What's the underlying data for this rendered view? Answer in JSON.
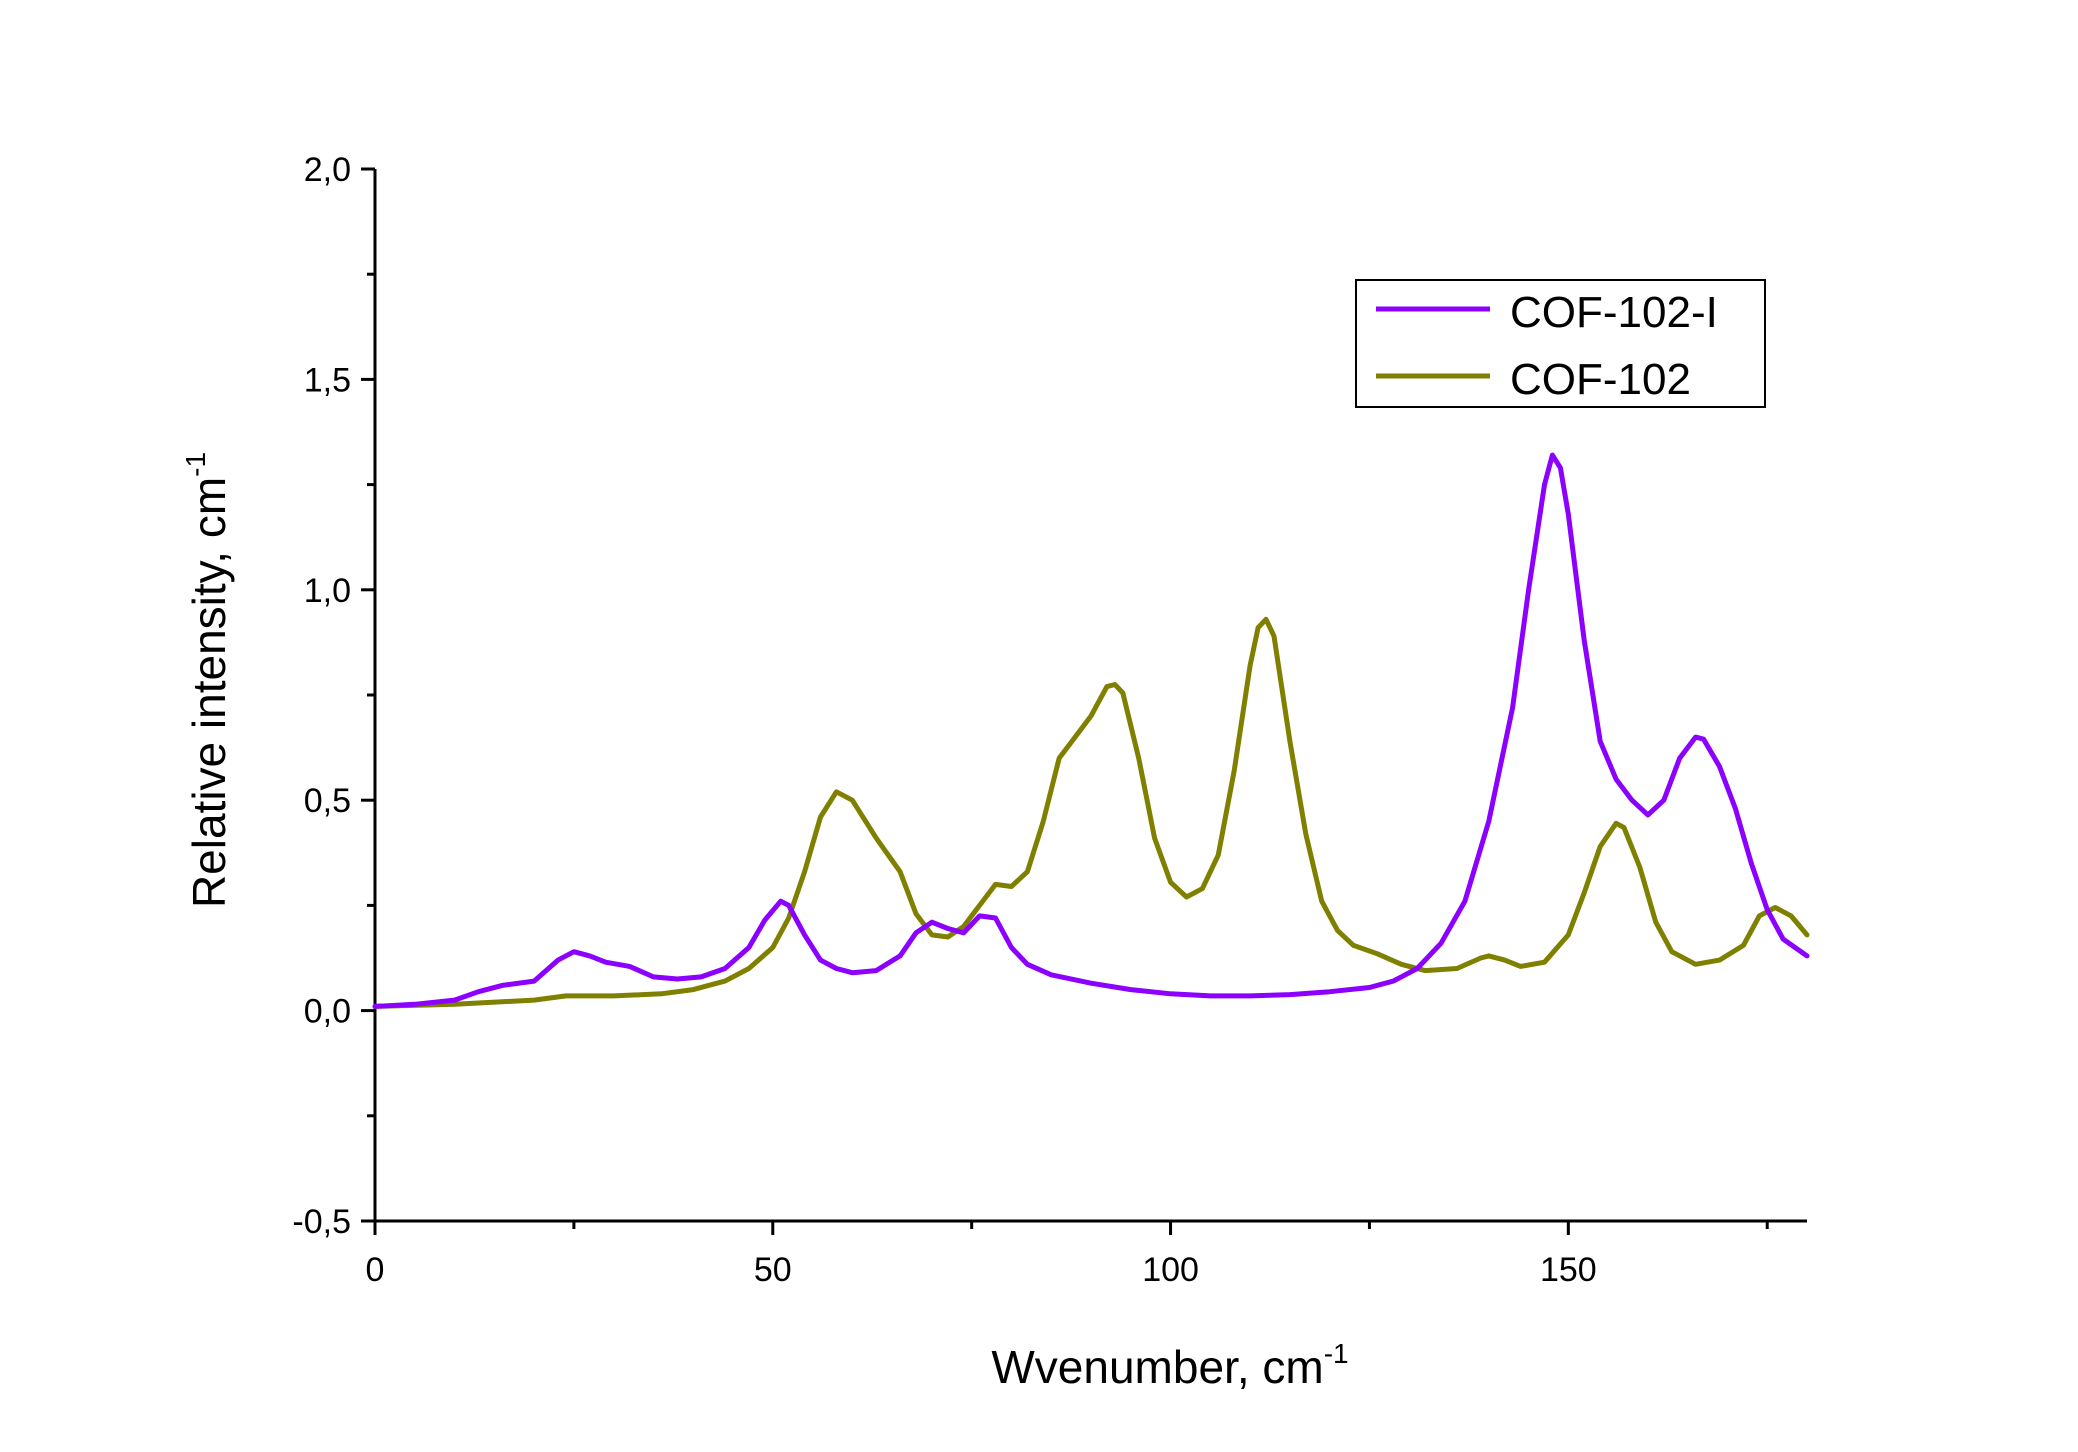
{
  "chart_data": {
    "type": "line",
    "xlabel": "Wvenumber, cm",
    "xlabel_sup": "-1",
    "ylabel": "Relative intensity, cm",
    "ylabel_sup": "-1",
    "xlim": [
      0,
      180
    ],
    "ylim": [
      -0.5,
      2.0
    ],
    "x_ticks": [
      0,
      50,
      100,
      150
    ],
    "x_tick_labels": [
      "0",
      "50",
      "100",
      "150"
    ],
    "y_ticks": [
      -0.5,
      0.0,
      0.5,
      1.0,
      1.5,
      2.0
    ],
    "y_tick_labels": [
      "-0,5",
      "0,0",
      "0,5",
      "1,0",
      "1,5",
      "2,0"
    ],
    "legend_position": "top-right",
    "grid": false,
    "series": [
      {
        "name": "COF-102-I",
        "color": "#8B00FF",
        "points": [
          [
            0,
            0.01
          ],
          [
            5,
            0.015
          ],
          [
            10,
            0.025
          ],
          [
            13,
            0.045
          ],
          [
            16,
            0.06
          ],
          [
            20,
            0.07
          ],
          [
            23,
            0.12
          ],
          [
            25,
            0.14
          ],
          [
            27,
            0.13
          ],
          [
            29,
            0.115
          ],
          [
            32,
            0.105
          ],
          [
            35,
            0.08
          ],
          [
            38,
            0.075
          ],
          [
            41,
            0.08
          ],
          [
            44,
            0.1
          ],
          [
            47,
            0.15
          ],
          [
            49,
            0.215
          ],
          [
            51,
            0.26
          ],
          [
            52,
            0.25
          ],
          [
            54,
            0.18
          ],
          [
            56,
            0.12
          ],
          [
            58,
            0.1
          ],
          [
            60,
            0.09
          ],
          [
            63,
            0.095
          ],
          [
            66,
            0.13
          ],
          [
            68,
            0.185
          ],
          [
            70,
            0.21
          ],
          [
            72,
            0.195
          ],
          [
            74,
            0.185
          ],
          [
            76,
            0.225
          ],
          [
            78,
            0.22
          ],
          [
            80,
            0.15
          ],
          [
            82,
            0.11
          ],
          [
            85,
            0.085
          ],
          [
            90,
            0.065
          ],
          [
            95,
            0.05
          ],
          [
            100,
            0.04
          ],
          [
            105,
            0.035
          ],
          [
            110,
            0.035
          ],
          [
            115,
            0.038
          ],
          [
            120,
            0.045
          ],
          [
            125,
            0.055
          ],
          [
            128,
            0.07
          ],
          [
            131,
            0.1
          ],
          [
            134,
            0.16
          ],
          [
            137,
            0.26
          ],
          [
            140,
            0.45
          ],
          [
            143,
            0.72
          ],
          [
            145,
            1.0
          ],
          [
            147,
            1.25
          ],
          [
            148,
            1.32
          ],
          [
            149,
            1.29
          ],
          [
            150,
            1.18
          ],
          [
            152,
            0.88
          ],
          [
            154,
            0.64
          ],
          [
            156,
            0.55
          ],
          [
            158,
            0.5
          ],
          [
            160,
            0.465
          ],
          [
            162,
            0.5
          ],
          [
            164,
            0.6
          ],
          [
            166,
            0.65
          ],
          [
            167,
            0.645
          ],
          [
            169,
            0.58
          ],
          [
            171,
            0.48
          ],
          [
            173,
            0.35
          ],
          [
            175,
            0.24
          ],
          [
            177,
            0.17
          ],
          [
            180,
            0.13
          ]
        ]
      },
      {
        "name": "COF-102",
        "color": "#808000",
        "points": [
          [
            0,
            0.01
          ],
          [
            10,
            0.015
          ],
          [
            20,
            0.025
          ],
          [
            24,
            0.035
          ],
          [
            30,
            0.035
          ],
          [
            36,
            0.04
          ],
          [
            40,
            0.05
          ],
          [
            44,
            0.07
          ],
          [
            47,
            0.1
          ],
          [
            50,
            0.15
          ],
          [
            52,
            0.22
          ],
          [
            54,
            0.33
          ],
          [
            56,
            0.46
          ],
          [
            58,
            0.52
          ],
          [
            60,
            0.5
          ],
          [
            63,
            0.41
          ],
          [
            66,
            0.33
          ],
          [
            68,
            0.23
          ],
          [
            70,
            0.18
          ],
          [
            72,
            0.175
          ],
          [
            74,
            0.2
          ],
          [
            76,
            0.25
          ],
          [
            78,
            0.3
          ],
          [
            80,
            0.295
          ],
          [
            82,
            0.33
          ],
          [
            84,
            0.45
          ],
          [
            86,
            0.6
          ],
          [
            88,
            0.65
          ],
          [
            90,
            0.7
          ],
          [
            92,
            0.77
          ],
          [
            93,
            0.775
          ],
          [
            94,
            0.755
          ],
          [
            96,
            0.6
          ],
          [
            98,
            0.41
          ],
          [
            100,
            0.305
          ],
          [
            102,
            0.27
          ],
          [
            104,
            0.29
          ],
          [
            106,
            0.37
          ],
          [
            108,
            0.57
          ],
          [
            110,
            0.82
          ],
          [
            111,
            0.91
          ],
          [
            112,
            0.93
          ],
          [
            113,
            0.89
          ],
          [
            115,
            0.64
          ],
          [
            117,
            0.42
          ],
          [
            119,
            0.26
          ],
          [
            121,
            0.19
          ],
          [
            123,
            0.155
          ],
          [
            126,
            0.135
          ],
          [
            129,
            0.11
          ],
          [
            132,
            0.095
          ],
          [
            136,
            0.1
          ],
          [
            139,
            0.125
          ],
          [
            140,
            0.13
          ],
          [
            142,
            0.12
          ],
          [
            144,
            0.105
          ],
          [
            147,
            0.115
          ],
          [
            150,
            0.18
          ],
          [
            152,
            0.28
          ],
          [
            154,
            0.39
          ],
          [
            156,
            0.445
          ],
          [
            157,
            0.435
          ],
          [
            159,
            0.34
          ],
          [
            161,
            0.21
          ],
          [
            163,
            0.14
          ],
          [
            166,
            0.11
          ],
          [
            169,
            0.12
          ],
          [
            172,
            0.155
          ],
          [
            174,
            0.225
          ],
          [
            176,
            0.245
          ],
          [
            178,
            0.225
          ],
          [
            180,
            0.18
          ]
        ]
      }
    ]
  }
}
